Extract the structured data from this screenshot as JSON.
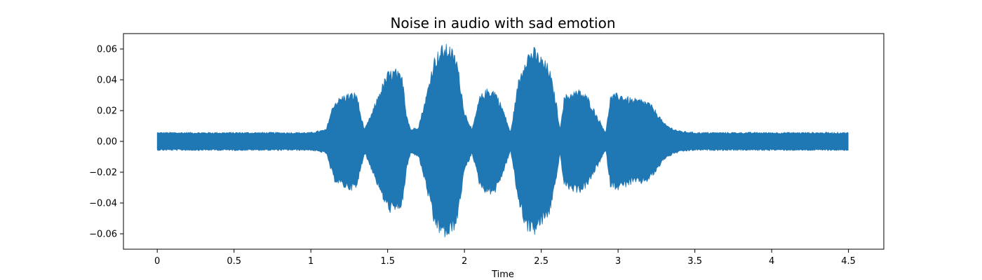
{
  "chart_data": {
    "type": "area",
    "title": "Noise in audio with sad emotion",
    "xlabel": "Time",
    "ylabel": "",
    "xlim": [
      -0.22,
      4.73
    ],
    "ylim": [
      -0.07,
      0.07
    ],
    "x_ticks": [
      0,
      0.5,
      1,
      1.5,
      2,
      2.5,
      3,
      3.5,
      4,
      4.5
    ],
    "x_tick_labels": [
      "0",
      "0.5",
      "1",
      "1.5",
      "2",
      "2.5",
      "3",
      "3.5",
      "4",
      "4.5"
    ],
    "y_ticks": [
      -0.06,
      -0.04,
      -0.02,
      0.0,
      0.02,
      0.04,
      0.06
    ],
    "y_tick_labels": [
      "−0.06",
      "−0.04",
      "−0.02",
      "0.00",
      "0.02",
      "0.04",
      "0.06"
    ],
    "grid": false,
    "series_color": "#1f77b4",
    "envelope": {
      "x": [
        0.0,
        0.1,
        0.2,
        0.3,
        0.4,
        0.5,
        0.6,
        0.7,
        0.8,
        0.9,
        1.0,
        1.05,
        1.1,
        1.12,
        1.15,
        1.2,
        1.25,
        1.3,
        1.32,
        1.35,
        1.4,
        1.45,
        1.5,
        1.55,
        1.6,
        1.62,
        1.65,
        1.7,
        1.75,
        1.8,
        1.85,
        1.9,
        1.95,
        2.0,
        2.05,
        2.1,
        2.15,
        2.2,
        2.25,
        2.3,
        2.35,
        2.4,
        2.45,
        2.5,
        2.55,
        2.6,
        2.62,
        2.65,
        2.7,
        2.75,
        2.8,
        2.85,
        2.9,
        2.92,
        2.95,
        3.0,
        3.05,
        3.1,
        3.15,
        3.2,
        3.25,
        3.3,
        3.35,
        3.4,
        3.5,
        3.6,
        3.7,
        3.8,
        3.9,
        4.0,
        4.1,
        4.2,
        4.3,
        4.4,
        4.5
      ],
      "amplitude": [
        0.006,
        0.006,
        0.006,
        0.006,
        0.006,
        0.006,
        0.006,
        0.006,
        0.006,
        0.006,
        0.006,
        0.007,
        0.008,
        0.016,
        0.026,
        0.03,
        0.032,
        0.032,
        0.02,
        0.008,
        0.02,
        0.034,
        0.046,
        0.048,
        0.042,
        0.02,
        0.008,
        0.01,
        0.03,
        0.055,
        0.063,
        0.064,
        0.055,
        0.02,
        0.008,
        0.03,
        0.035,
        0.034,
        0.022,
        0.006,
        0.04,
        0.058,
        0.062,
        0.056,
        0.05,
        0.025,
        0.008,
        0.03,
        0.033,
        0.034,
        0.03,
        0.02,
        0.01,
        0.006,
        0.03,
        0.032,
        0.03,
        0.028,
        0.028,
        0.026,
        0.02,
        0.012,
        0.009,
        0.007,
        0.006,
        0.006,
        0.006,
        0.006,
        0.006,
        0.006,
        0.006,
        0.006,
        0.006,
        0.006,
        0.006
      ]
    }
  }
}
